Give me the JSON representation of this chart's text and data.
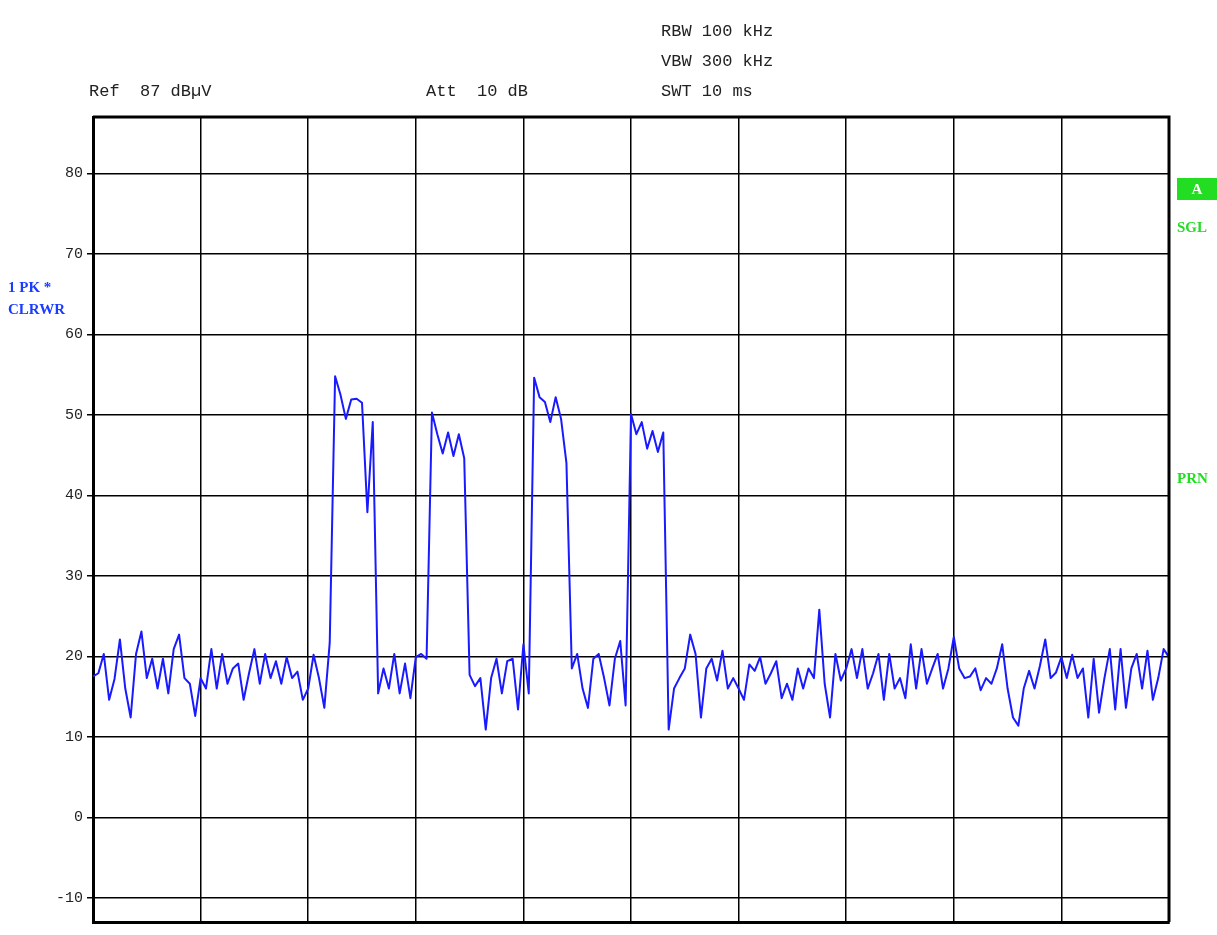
{
  "chart_data": {
    "type": "line",
    "annotations": [
      "RBW 100 kHz",
      "VBW 300 kHz",
      "SWT 10 ms",
      "Ref  87 dBµV",
      "Att  10 dB",
      "1 PK *",
      "CLRWR",
      "A",
      "SGL",
      "PRN"
    ],
    "categories": [
      null,
      null,
      null,
      null,
      null,
      null,
      null,
      null,
      null,
      null,
      null,
      null,
      null,
      null,
      null,
      null,
      null,
      null,
      null,
      null,
      null,
      null,
      null,
      null,
      null,
      null,
      null,
      null,
      null,
      null,
      null,
      null,
      null,
      null,
      null,
      null,
      null,
      null,
      null,
      null,
      null,
      null,
      null,
      null,
      null,
      null,
      null,
      null,
      null,
      null,
      null,
      null,
      null,
      null,
      null,
      null,
      null,
      null,
      null,
      null,
      null,
      null,
      null,
      null,
      null,
      null,
      null,
      null,
      null,
      null,
      null,
      null,
      null,
      null,
      null,
      null,
      null,
      null,
      null,
      null,
      null,
      null,
      null,
      null,
      null,
      null,
      null,
      null,
      null,
      null,
      null,
      null,
      null,
      null,
      null,
      null,
      null,
      null,
      null,
      null,
      null,
      null,
      null,
      null,
      null,
      null,
      null,
      null,
      null,
      null,
      null,
      null,
      null,
      null,
      null,
      null,
      null,
      null,
      null,
      null,
      null,
      null,
      null,
      null,
      null,
      null,
      null,
      null,
      null,
      null,
      null,
      null,
      null,
      null,
      null,
      null,
      null,
      null,
      null,
      null,
      null,
      null,
      null,
      null,
      null,
      null,
      null,
      null,
      null,
      null,
      null,
      null,
      null,
      null,
      null,
      null,
      null,
      null,
      null,
      null,
      null,
      null,
      null,
      null,
      null,
      null,
      null,
      null,
      null,
      null,
      null,
      null,
      null,
      null,
      null,
      null,
      null,
      null,
      null,
      null,
      null,
      null,
      null,
      null,
      null,
      null,
      null,
      null,
      null,
      null,
      null,
      null,
      null,
      null,
      null,
      null,
      null,
      null,
      null,
      null,
      null
    ],
    "ylim": [
      -13,
      87
    ],
    "yticks": [
      -10,
      0,
      10,
      20,
      30,
      40,
      50,
      60,
      70,
      80
    ],
    "grid": true,
    "marker": "none",
    "line_style": "solid",
    "series": [
      {
        "color": "#1a1aff",
        "values": [
          17.5,
          17.9,
          20.3,
          14.6,
          17.2,
          22.1,
          16.0,
          12.4,
          20.3,
          23.1,
          17.3,
          19.7,
          16.0,
          19.7,
          15.4,
          20.9,
          22.7,
          17.3,
          16.6,
          12.6,
          17.3,
          16.0,
          20.9,
          16.0,
          20.3,
          16.6,
          18.5,
          19.1,
          14.6,
          17.9,
          20.9,
          16.6,
          20.3,
          17.3,
          19.4,
          16.6,
          19.9,
          17.3,
          18.1,
          14.6,
          16.0,
          20.2,
          17.3,
          13.6,
          21.7,
          54.8,
          52.5,
          49.5,
          51.9,
          52.0,
          51.5,
          37.9,
          49.1,
          15.4,
          18.5,
          16.0,
          20.3,
          15.4,
          19.1,
          14.8,
          19.9,
          20.3,
          19.7,
          50.3,
          47.6,
          45.2,
          47.8,
          44.9,
          47.6,
          44.6,
          17.7,
          16.3,
          17.3,
          10.9,
          17.3,
          19.7,
          15.4,
          19.4,
          19.7,
          13.4,
          21.5,
          15.4,
          54.6,
          52.2,
          51.6,
          49.1,
          52.2,
          49.5,
          44.0,
          18.5,
          20.3,
          16.0,
          13.6,
          19.7,
          20.3,
          17.3,
          13.9,
          19.7,
          21.9,
          13.9,
          50.1,
          47.6,
          49.1,
          45.8,
          48.0,
          45.4,
          47.8,
          10.9,
          16.0,
          17.3,
          18.5,
          22.7,
          20.3,
          12.4,
          18.5,
          19.7,
          17.0,
          20.7,
          16.0,
          17.3,
          16.0,
          14.6,
          19.0,
          18.2,
          19.9,
          16.6,
          17.9,
          19.4,
          14.8,
          16.6,
          14.6,
          18.5,
          16.0,
          18.5,
          17.3,
          25.8,
          16.6,
          12.4,
          20.3,
          17.0,
          18.5,
          20.9,
          17.3,
          20.9,
          16.0,
          17.9,
          20.3,
          14.6,
          20.3,
          16.0,
          17.3,
          14.8,
          21.5,
          16.0,
          20.9,
          16.6,
          18.5,
          20.3,
          16.0,
          18.5,
          22.4,
          18.5,
          17.3,
          17.5,
          18.5,
          15.8,
          17.3,
          16.6,
          18.5,
          21.5,
          16.0,
          12.4,
          11.4,
          16.0,
          18.2,
          16.0,
          18.8,
          22.1,
          17.3,
          18.0,
          19.9,
          17.3,
          20.2,
          17.3,
          18.5,
          12.4,
          19.7,
          13.0,
          17.3,
          20.9,
          13.4,
          20.9,
          13.6,
          18.5,
          20.3,
          16.0,
          20.7,
          14.6,
          17.3,
          20.9,
          19.9
        ]
      }
    ]
  }
}
